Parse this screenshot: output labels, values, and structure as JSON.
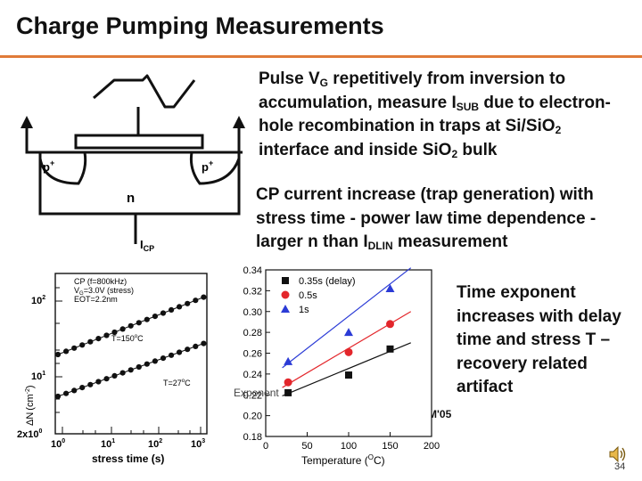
{
  "slide": {
    "title": "Charge Pumping Measurements",
    "accent_color": "#e07b39",
    "page_number": "34"
  },
  "bullets": [
    {
      "parts": [
        {
          "t": "Pulse V"
        },
        {
          "sub": "G"
        },
        {
          "t": " repetitively from inversion to accumulation, measure I"
        },
        {
          "sub": "SUB"
        },
        {
          "t": " due to electron-hole recombination in traps at Si/SiO"
        },
        {
          "sub": "2"
        },
        {
          "t": " interface and inside SiO"
        },
        {
          "sub": "2"
        },
        {
          "t": " bulk"
        }
      ]
    },
    {
      "parts": [
        {
          "t": "CP current increase (trap generation) with stress time  - power law time dependence - larger n than I"
        },
        {
          "sub": "DLIN"
        },
        {
          "t": " measurement"
        }
      ]
    },
    {
      "parts": [
        {
          "t": "Time exponent increases with delay time and stress T – recovery related artifact"
        }
      ]
    }
  ],
  "citation": "Varghese, IEDM'05",
  "diagram": {
    "left_region": "p",
    "right_region": "p",
    "superscript": "+",
    "substrate": "n",
    "current_label": "I",
    "current_sub": "CP"
  },
  "left_chart": {
    "legend": [
      "CP (f=800kHz)",
      "V",
      "G",
      "=3.0V (stress)",
      "EOT=2.2nm"
    ],
    "annotations": [
      "T=150",
      "o",
      "C",
      "T=27",
      "o",
      "C"
    ],
    "xlabel": "stress time (s)",
    "ylabel_parts": [
      "ΔN",
      "(",
      "cm",
      "-2",
      ")"
    ],
    "x_ticks": [
      {
        "base": "10",
        "exp": "0"
      },
      {
        "base": "10",
        "exp": "1"
      },
      {
        "base": "10",
        "exp": "2"
      },
      {
        "base": "10",
        "exp": "3"
      }
    ],
    "y_ticks": [
      {
        "base": "2x10",
        "exp": "0"
      },
      {
        "base": "10",
        "exp": "1"
      },
      {
        "base": "10",
        "exp": "2"
      }
    ]
  },
  "chart_data": {
    "type": "scatter",
    "xlabel": "Temperature (",
    "xlabel_sup": "O",
    "xlabel_end": "C)",
    "ylabel": "Exponent",
    "xlim": [
      0,
      200
    ],
    "ylim": [
      0.18,
      0.34
    ],
    "x_ticks": [
      "0",
      "50",
      "100",
      "150",
      "200"
    ],
    "y_ticks": [
      "0.18",
      "0.20",
      "0.22",
      "0.24",
      "0.26",
      "0.28",
      "0.30",
      "0.32",
      "0.34"
    ],
    "legend_position": "top-left",
    "series": [
      {
        "name": "0.35s (delay)",
        "color": "#111111",
        "marker": "square",
        "x": [
          27,
          100,
          150
        ],
        "y": [
          0.222,
          0.239,
          0.264
        ],
        "fit": [
          [
            20,
            0.219
          ],
          [
            175,
            0.27
          ]
        ]
      },
      {
        "name": "0.5s",
        "color": "#e3262b",
        "marker": "circle",
        "x": [
          27,
          100,
          150
        ],
        "y": [
          0.232,
          0.261,
          0.288
        ],
        "fit": [
          [
            20,
            0.227
          ],
          [
            175,
            0.3
          ]
        ]
      },
      {
        "name": "1s",
        "color": "#2b3bd6",
        "marker": "triangle",
        "x": [
          27,
          100,
          150
        ],
        "y": [
          0.252,
          0.28,
          0.322
        ],
        "fit": [
          [
            20,
            0.246
          ],
          [
            175,
            0.342
          ]
        ]
      }
    ]
  },
  "speaker_icon": "speaker-icon"
}
